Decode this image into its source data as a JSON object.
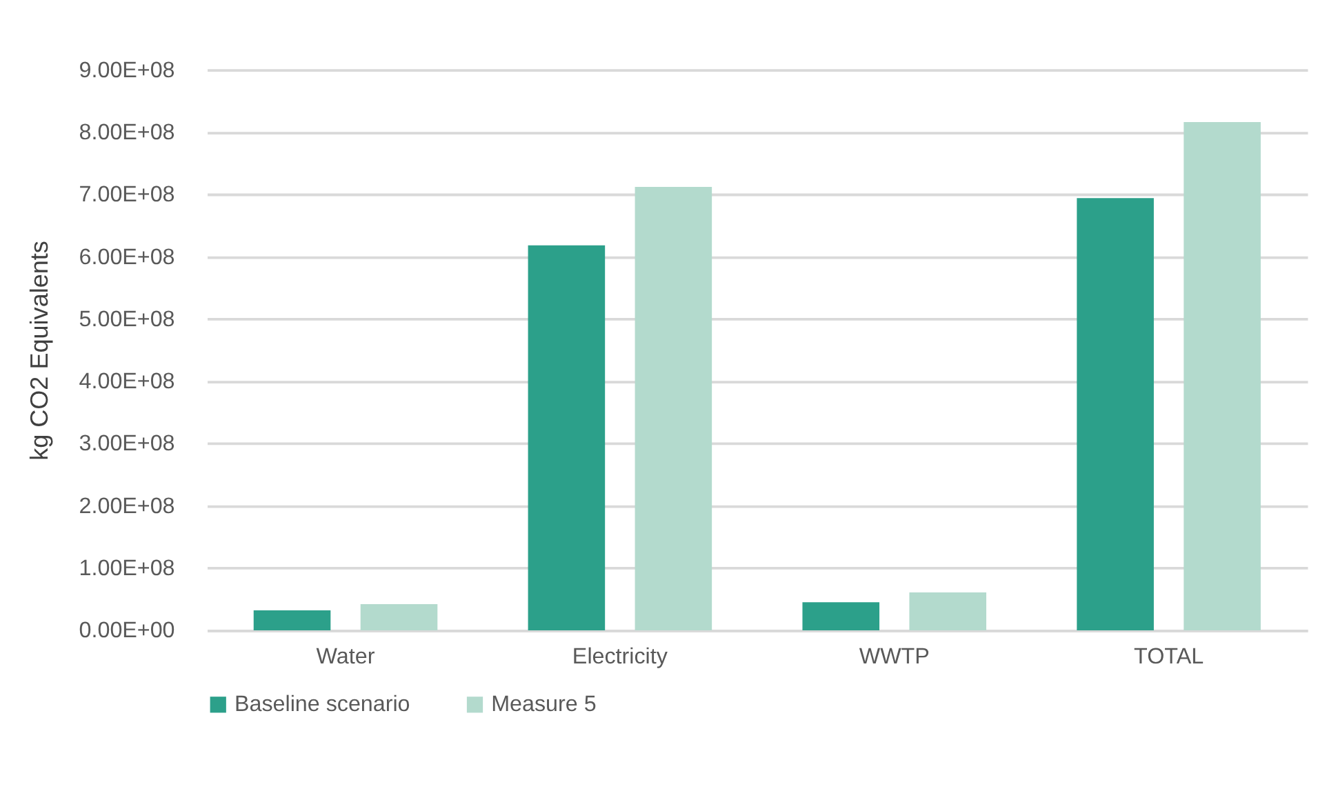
{
  "chart_data": {
    "type": "bar",
    "ylabel": "kg CO2 Equivalents",
    "categories": [
      "Water",
      "Electricity",
      "WWTP",
      "TOTAL"
    ],
    "series": [
      {
        "name": "Baseline scenario",
        "color": "#2ca08a",
        "values": [
          32000000,
          618000000,
          45000000,
          694000000
        ]
      },
      {
        "name": "Measure 5",
        "color": "#b3dacd",
        "values": [
          42000000,
          712000000,
          61000000,
          816000000
        ]
      }
    ],
    "ylim": [
      0,
      900000000
    ],
    "yticks": [
      {
        "value": 0,
        "label": "0.00E+00"
      },
      {
        "value": 100000000,
        "label": "1.00E+08"
      },
      {
        "value": 200000000,
        "label": "2.00E+08"
      },
      {
        "value": 300000000,
        "label": "3.00E+08"
      },
      {
        "value": 400000000,
        "label": "4.00E+08"
      },
      {
        "value": 500000000,
        "label": "5.00E+08"
      },
      {
        "value": 600000000,
        "label": "6.00E+08"
      },
      {
        "value": 700000000,
        "label": "7.00E+08"
      },
      {
        "value": 800000000,
        "label": "8.00E+08"
      },
      {
        "value": 900000000,
        "label": "9.00E+08"
      }
    ],
    "grid": "y",
    "legend": "bottom"
  }
}
